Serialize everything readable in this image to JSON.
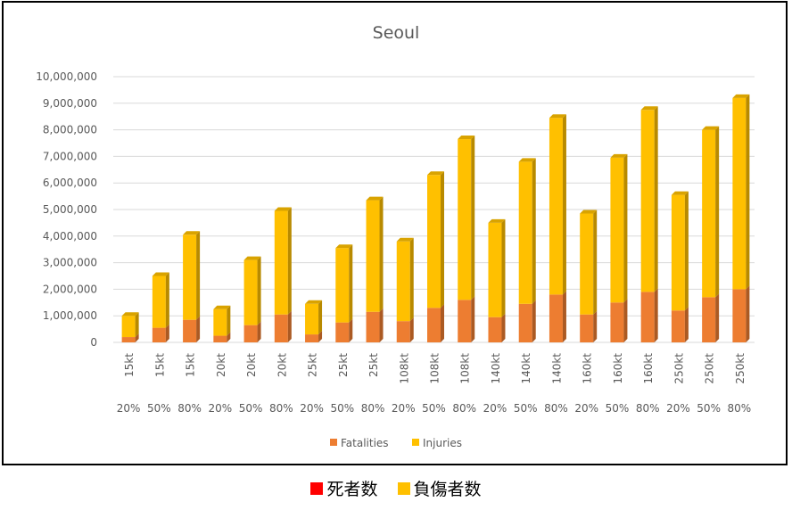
{
  "chart_data": {
    "type": "bar",
    "stacked": true,
    "title": "Seoul",
    "categories": [
      "15kt 20%",
      "15kt 50%",
      "15kt 80%",
      "20kt 20%",
      "20kt 50%",
      "20kt 80%",
      "25kt 20%",
      "25kt 50%",
      "25kt 80%",
      "108kt 20%",
      "108kt 50%",
      "108kt 80%",
      "140kt 20%",
      "140kt 50%",
      "140kt 80%",
      "160kt 20%",
      "160kt 50%",
      "160kt 80%",
      "250kt 20%",
      "250kt 50%",
      "250kt 80%"
    ],
    "category_lines": {
      "yield": [
        "15kt",
        "15kt",
        "15kt",
        "20kt",
        "20kt",
        "20kt",
        "25kt",
        "25kt",
        "25kt",
        "108kt",
        "108kt",
        "108kt",
        "140kt",
        "140kt",
        "140kt",
        "160kt",
        "160kt",
        "160kt",
        "250kt",
        "250kt",
        "250kt"
      ],
      "percent": [
        "20%",
        "50%",
        "80%",
        "20%",
        "50%",
        "80%",
        "20%",
        "50%",
        "80%",
        "20%",
        "50%",
        "80%",
        "20%",
        "50%",
        "80%",
        "20%",
        "50%",
        "80%",
        "20%",
        "50%",
        "80%"
      ]
    },
    "series": [
      {
        "name": "Fatalities",
        "color": "#ed7d31",
        "values": [
          200000,
          550000,
          850000,
          250000,
          650000,
          1050000,
          300000,
          750000,
          1150000,
          800000,
          1300000,
          1600000,
          950000,
          1450000,
          1800000,
          1050000,
          1500000,
          1900000,
          1200000,
          1700000,
          2000000
        ]
      },
      {
        "name": "Injuries",
        "color": "#ffc000",
        "values": [
          800000,
          1950000,
          3200000,
          1000000,
          2450000,
          3900000,
          1150000,
          2800000,
          4200000,
          3000000,
          5000000,
          6050000,
          3550000,
          5350000,
          6650000,
          3800000,
          5450000,
          6850000,
          4350000,
          6300000,
          7200000
        ]
      }
    ],
    "ylim": [
      0,
      10000000
    ],
    "yticks": [
      "0",
      "1,000,000",
      "2,000,000",
      "3,000,000",
      "4,000,000",
      "5,000,000",
      "6,000,000",
      "7,000,000",
      "8,000,000",
      "9,000,000",
      "10,000,000"
    ],
    "grid": true,
    "legend_position": "bottom"
  },
  "caption": {
    "items": [
      {
        "label": "死者数",
        "color": "#ff0000"
      },
      {
        "label": "負傷者数",
        "color": "#ffc000"
      }
    ]
  }
}
